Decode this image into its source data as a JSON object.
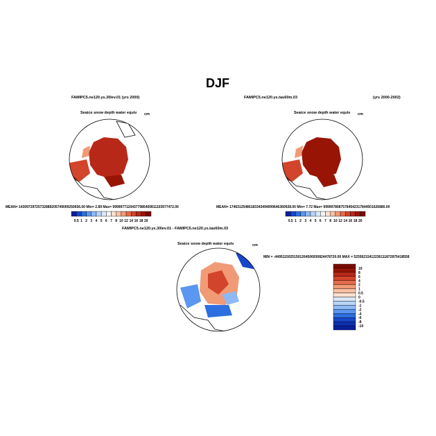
{
  "title": "DJF",
  "panels": [
    {
      "case": "FAMIPC5.ne120.ys.30lev.01 (yrs 2000)",
      "variable": "Seaice snow depth water equiv",
      "units": "cm",
      "stats": "MEAN= 14309729725732889205749009250656.00   Min=   2.89   Max= 99999771204377985400811103977472.00"
    },
    {
      "case": "FAMIPC5.ne120.ys.tau60m.03",
      "years": "(yrs 2000-2002)",
      "variable": "Seaice snow depth water equiv",
      "units": "cm",
      "stats": "MEAN= 17463125486183343494099646360928.00   Min=   7.72   Max= 99999780875784542317844501626880.00"
    }
  ],
  "colorbar": {
    "labels": [
      0.5,
      1,
      2,
      3,
      4,
      5,
      6,
      7,
      8,
      10,
      12,
      14,
      16,
      18,
      20
    ],
    "colors": [
      "#0a1e9e",
      "#1746c8",
      "#2d6fe0",
      "#5b96f0",
      "#8fb9f5",
      "#b9d4f9",
      "#dbe8fb",
      "#f4f4f4",
      "#fde0d0",
      "#f9c0a3",
      "#f19a76",
      "#e46c4b",
      "#d2442b",
      "#b82818",
      "#981405",
      "#7a0a04"
    ]
  },
  "difference": {
    "title": "FAMIPC5.ne120.ys.30lev.01 - FAMIPC5.ne120.ys.tau60m.03",
    "variable": "Seaice snow depth water equiv",
    "units": "cm",
    "stats": "MIN = -44951150251501264506930824478720.00  MAX = 52556215412236111872875418558",
    "colorbar": {
      "labels": [
        10,
        8,
        6,
        4,
        2,
        1,
        0.5,
        0,
        -0.5,
        -1,
        -2,
        -4,
        -6,
        -8,
        -10
      ],
      "colors": [
        "#7a0a04",
        "#981405",
        "#b82818",
        "#d2442b",
        "#e46c4b",
        "#f19a76",
        "#f9c0a3",
        "#fde0d0",
        "#dbe8fb",
        "#b9d4f9",
        "#8fb9f5",
        "#5b96f0",
        "#2d6fe0",
        "#1746c8",
        "#0e2fb0",
        "#0a1e9e"
      ]
    }
  }
}
